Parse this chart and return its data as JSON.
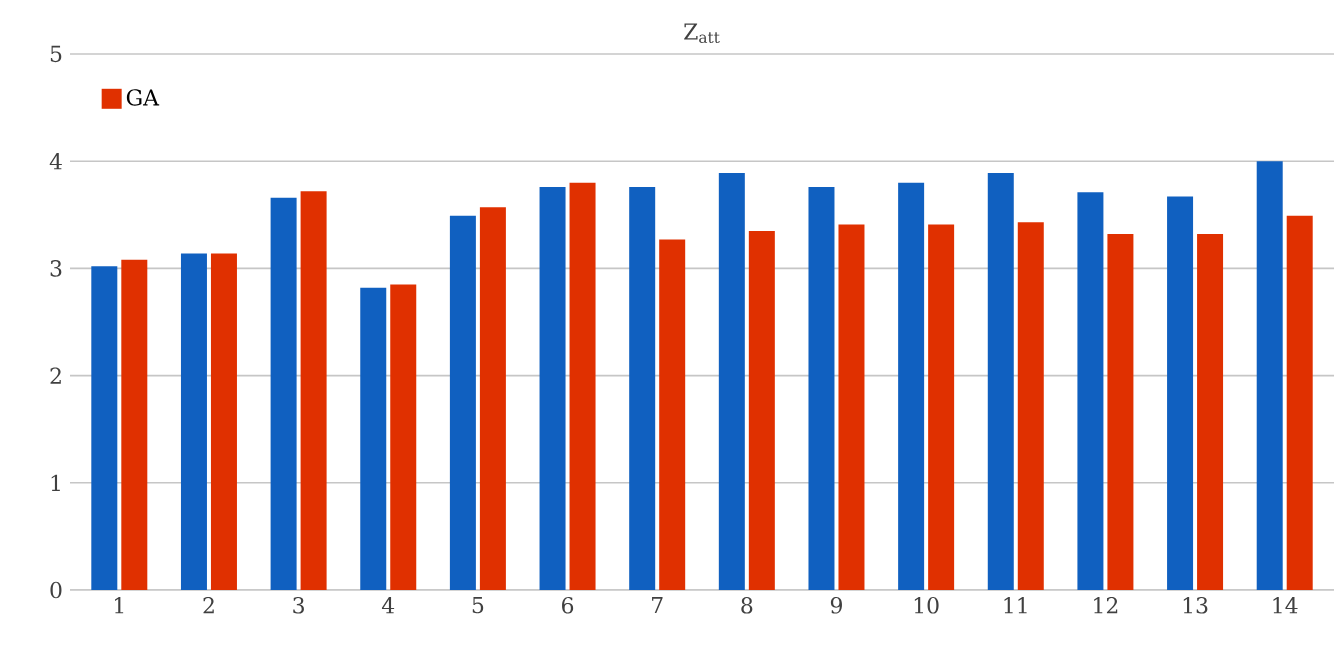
{
  "chart_data": {
    "type": "bar",
    "title": "Z$_{att}$",
    "categories": [
      "1",
      "2",
      "3",
      "4",
      "5",
      "6",
      "7",
      "8",
      "9",
      "10",
      "11",
      "12",
      "13",
      "14"
    ],
    "series": [
      {
        "color": "#1060c0",
        "values": [
          3.02,
          3.14,
          3.66,
          2.82,
          3.49,
          3.76,
          3.76,
          3.89,
          3.76,
          3.8,
          3.89,
          3.71,
          3.67,
          4.0
        ]
      },
      {
        "name": "GA",
        "color": "#e03000",
        "values": [
          3.08,
          3.14,
          3.72,
          2.85,
          3.57,
          3.8,
          3.27,
          3.35,
          3.41,
          3.41,
          3.43,
          3.32,
          3.32,
          3.49
        ]
      }
    ],
    "ylim": [
      0,
      5
    ],
    "yticks": [
      0,
      1,
      2,
      3,
      4,
      5
    ],
    "grid": "y",
    "legend": "top left"
  }
}
